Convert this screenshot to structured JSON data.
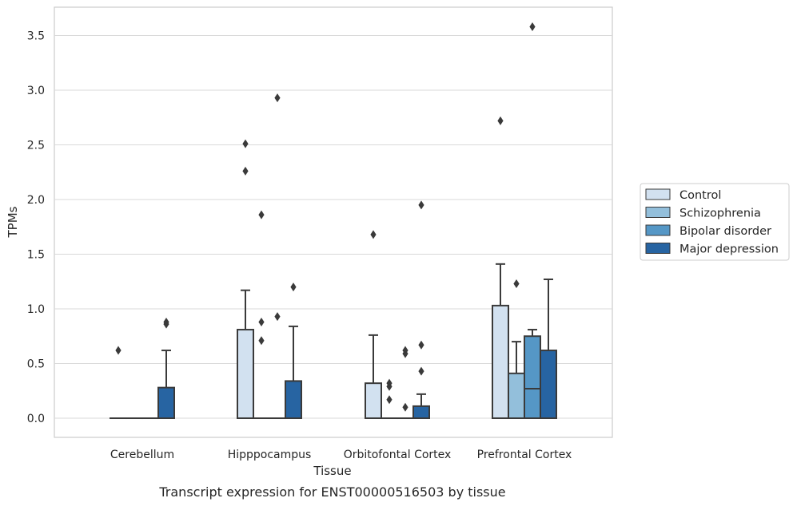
{
  "caption": "Transcript expression for ENST00000516503 by tissue",
  "chart_data": {
    "type": "box",
    "xlabel": "Tissue",
    "ylabel": "TPMs",
    "ylim": [
      -0.17,
      3.76
    ],
    "yticks": [
      "0.0",
      "0.5",
      "1.0",
      "1.5",
      "2.0",
      "2.5",
      "3.0",
      "3.5"
    ],
    "ytick_values": [
      0,
      0.5,
      1.0,
      1.5,
      2.0,
      2.5,
      3.0,
      3.5
    ],
    "grid": "horizontal",
    "legend_position": "right",
    "categories": [
      "Cerebellum",
      "Hipppocampus",
      "Orbitofontal Cortex",
      "Prefrontal Cortex"
    ],
    "series": [
      {
        "name": "Control",
        "color": "#d2e1f0",
        "boxes": [
          {
            "q1": 0,
            "median": 0,
            "q3": 0,
            "whislo": 0,
            "whishi": 0,
            "fliers": [
              0.62
            ]
          },
          {
            "q1": 0,
            "median": 0,
            "q3": 0.81,
            "whislo": 0,
            "whishi": 1.17,
            "fliers": [
              2.26,
              2.51
            ]
          },
          {
            "q1": 0,
            "median": 0,
            "q3": 0.32,
            "whislo": 0,
            "whishi": 0.76,
            "fliers": [
              1.68
            ]
          },
          {
            "q1": 0,
            "median": 0,
            "q3": 1.03,
            "whislo": 0,
            "whishi": 1.41,
            "fliers": [
              2.72
            ]
          }
        ]
      },
      {
        "name": "Schizophrenia",
        "color": "#93bfdb",
        "boxes": [
          {
            "q1": 0,
            "median": 0,
            "q3": 0,
            "whislo": 0,
            "whishi": 0,
            "fliers": []
          },
          {
            "q1": 0,
            "median": 0,
            "q3": 0,
            "whislo": 0,
            "whishi": 0,
            "fliers": [
              0.71,
              0.88,
              1.86
            ]
          },
          {
            "q1": 0,
            "median": 0,
            "q3": 0,
            "whislo": 0,
            "whishi": 0,
            "fliers": [
              0.17,
              0.29,
              0.32
            ]
          },
          {
            "q1": 0,
            "median": 0,
            "q3": 0.41,
            "whislo": 0,
            "whishi": 0.7,
            "fliers": [
              1.23
            ]
          }
        ]
      },
      {
        "name": "Bipolar disorder",
        "color": "#5597c6",
        "boxes": [
          {
            "q1": 0,
            "median": 0,
            "q3": 0,
            "whislo": 0,
            "whishi": 0,
            "fliers": []
          },
          {
            "q1": 0,
            "median": 0,
            "q3": 0,
            "whislo": 0,
            "whishi": 0,
            "fliers": [
              0.93,
              2.93
            ]
          },
          {
            "q1": 0,
            "median": 0,
            "q3": 0,
            "whislo": 0,
            "whishi": 0,
            "fliers": [
              0.1,
              0.59,
              0.62
            ]
          },
          {
            "q1": 0,
            "median": 0.27,
            "q3": 0.75,
            "whislo": 0,
            "whishi": 0.81,
            "fliers": [
              3.58
            ]
          }
        ]
      },
      {
        "name": "Major depression",
        "color": "#2764a2",
        "boxes": [
          {
            "q1": 0,
            "median": 0,
            "q3": 0.28,
            "whislo": 0,
            "whishi": 0.62,
            "fliers": [
              0.86,
              0.88
            ]
          },
          {
            "q1": 0,
            "median": 0,
            "q3": 0.34,
            "whislo": 0,
            "whishi": 0.84,
            "fliers": [
              1.2
            ]
          },
          {
            "q1": 0,
            "median": 0,
            "q3": 0.11,
            "whislo": 0,
            "whishi": 0.22,
            "fliers": [
              0.43,
              0.67,
              1.95
            ]
          },
          {
            "q1": 0,
            "median": 0,
            "q3": 0.62,
            "whislo": 0,
            "whishi": 1.27,
            "fliers": []
          }
        ]
      }
    ]
  }
}
